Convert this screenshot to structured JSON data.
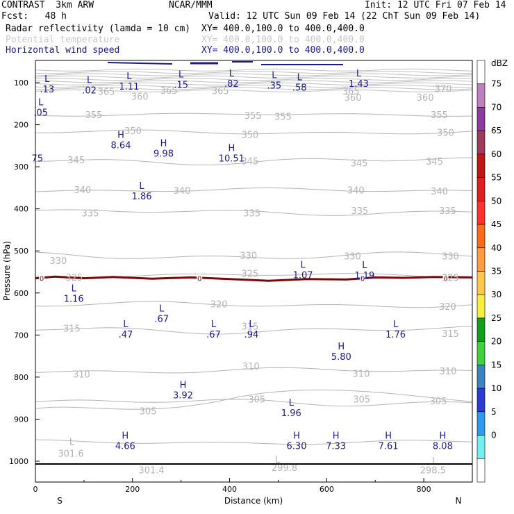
{
  "header": {
    "line1_left": "CONTRAST  3km ARW",
    "line1_mid": "NCAR/MMM",
    "line1_right": "Init: 12 UTC Fri 07 Feb 14",
    "line2_left": "Fcst:   48 h",
    "line2_right": "Valid: 12 UTC Sun 09 Feb 14 (22 ChT Sun 09 Feb 14)",
    "field1_name": "Radar reflectivity (lamda = 10 cm)",
    "field1_xy": "XY= 400.0,100.0 to 400.0,400.0",
    "field2_name": "Potential temperature",
    "field2_xy": "XY= 400.0,100.0 to 400.0,400.0",
    "field3_name": "Horizontal wind speed",
    "field3_xy": "XY= 400.0,100.0 to 400.0,400.0"
  },
  "colors": {
    "wind": "#1a1a8c",
    "theta": "#b4b4b4",
    "freezing": "#7a0a0a",
    "terrain": "#000000"
  },
  "chart_data": {
    "type": "cross-section",
    "xlabel": "Distance (km)",
    "ylabel": "Pressure (hPa)",
    "x_ticks": [
      "0",
      "200",
      "400",
      "600",
      "800"
    ],
    "y_ticks": [
      "100",
      "200",
      "300",
      "400",
      "500",
      "600",
      "700",
      "800",
      "900",
      "1000"
    ],
    "xlim": [
      0,
      900
    ],
    "ylim_hpa": [
      1050,
      55
    ],
    "endpoint_labels": {
      "left": "S",
      "right": "N"
    },
    "colorbar": {
      "unit": "dBZ",
      "levels": [
        "75",
        "70",
        "65",
        "60",
        "55",
        "50",
        "45",
        "40",
        "35",
        "30",
        "25",
        "20",
        "15",
        "10",
        "5",
        "0"
      ],
      "colors": [
        "#ffffff",
        "#c080c0",
        "#8c3c9c",
        "#9c3c5c",
        "#c01818",
        "#e02020",
        "#ff3030",
        "#ff6a1a",
        "#ff9c40",
        "#ffc84a",
        "#f8ee40",
        "#10a020",
        "#40d040",
        "#3c84c0",
        "#2c3ad8",
        "#2c9cf0",
        "#70f0f0",
        "#ffffff"
      ]
    },
    "theta_labels": [
      {
        "text": "365",
        "x": 146,
        "p": 121
      },
      {
        "text": "365",
        "x": 275,
        "p": 118
      },
      {
        "text": "365",
        "x": 381,
        "p": 119
      },
      {
        "text": "365",
        "x": 650,
        "p": 120
      },
      {
        "text": "370",
        "x": 840,
        "p": 113
      },
      {
        "text": "360",
        "x": 215,
        "p": 132
      },
      {
        "text": "360",
        "x": 654,
        "p": 135
      },
      {
        "text": "360",
        "x": 803,
        "p": 135
      },
      {
        "text": "355",
        "x": 120,
        "p": 176
      },
      {
        "text": "355",
        "x": 448,
        "p": 178
      },
      {
        "text": "355",
        "x": 510,
        "p": 180
      },
      {
        "text": "355",
        "x": 832,
        "p": 176
      },
      {
        "text": "350",
        "x": 201,
        "p": 214
      },
      {
        "text": "350",
        "x": 442,
        "p": 223
      },
      {
        "text": "350",
        "x": 845,
        "p": 218
      },
      {
        "text": "345",
        "x": 84,
        "p": 283
      },
      {
        "text": "345",
        "x": 442,
        "p": 286
      },
      {
        "text": "345",
        "x": 667,
        "p": 291
      },
      {
        "text": "345",
        "x": 822,
        "p": 287
      },
      {
        "text": "340",
        "x": 97,
        "p": 354
      },
      {
        "text": "340",
        "x": 302,
        "p": 356
      },
      {
        "text": "340",
        "x": 660,
        "p": 355
      },
      {
        "text": "340",
        "x": 832,
        "p": 358
      },
      {
        "text": "335",
        "x": 113,
        "p": 410
      },
      {
        "text": "335",
        "x": 446,
        "p": 410
      },
      {
        "text": "335",
        "x": 668,
        "p": 404
      },
      {
        "text": "335",
        "x": 849,
        "p": 404
      },
      {
        "text": "330",
        "x": 47,
        "p": 523
      },
      {
        "text": "330",
        "x": 439,
        "p": 510
      },
      {
        "text": "330",
        "x": 653,
        "p": 512
      },
      {
        "text": "330",
        "x": 855,
        "p": 512
      },
      {
        "text": "325",
        "x": 80,
        "p": 562
      },
      {
        "text": "325",
        "x": 442,
        "p": 553
      },
      {
        "text": "325",
        "x": 855,
        "p": 563
      },
      {
        "text": "320",
        "x": 378,
        "p": 626
      },
      {
        "text": "320",
        "x": 849,
        "p": 632
      },
      {
        "text": "315",
        "x": 75,
        "p": 684
      },
      {
        "text": "315",
        "x": 442,
        "p": 679
      },
      {
        "text": "315",
        "x": 855,
        "p": 696
      },
      {
        "text": "310",
        "x": 95,
        "p": 793
      },
      {
        "text": "310",
        "x": 444,
        "p": 774
      },
      {
        "text": "310",
        "x": 671,
        "p": 791
      },
      {
        "text": "310",
        "x": 850,
        "p": 785
      },
      {
        "text": "305",
        "x": 232,
        "p": 880
      },
      {
        "text": "305",
        "x": 456,
        "p": 852
      },
      {
        "text": "305",
        "x": 672,
        "p": 852
      },
      {
        "text": "305",
        "x": 830,
        "p": 856
      },
      {
        "text": "L",
        "x": 75,
        "p": 953
      },
      {
        "text": "301.6",
        "x": 73,
        "p": 981
      },
      {
        "text": "301.4",
        "x": 239,
        "p": 1021
      },
      {
        "text": "L",
        "x": 499,
        "p": 995
      },
      {
        "text": "299.8",
        "x": 513,
        "p": 1015
      },
      {
        "text": "L",
        "x": 822,
        "p": 998
      },
      {
        "text": "298.5",
        "x": 819,
        "p": 1021
      }
    ],
    "wind_labels": [
      {
        "type": "L",
        "value": ".13",
        "x": 24,
        "p": 98
      },
      {
        "type": "L",
        "value": ".02",
        "x": 111,
        "p": 101
      },
      {
        "type": "L",
        "value": "1.11",
        "x": 193,
        "p": 92
      },
      {
        "type": "L",
        "value": ".15",
        "x": 300,
        "p": 88
      },
      {
        "type": "L",
        "value": ".82",
        "x": 404,
        "p": 85
      },
      {
        "type": "L",
        "value": ".35",
        "x": 492,
        "p": 89
      },
      {
        "type": "L",
        "value": ".58",
        "x": 544,
        "p": 94
      },
      {
        "type": "L",
        "value": "1.43",
        "x": 666,
        "p": 85
      },
      {
        "type": "L",
        "value": ".05",
        "x": 11,
        "p": 154
      },
      {
        "type": "H",
        "value": "8.64",
        "x": 176,
        "p": 231
      },
      {
        "type": "H",
        "value": "9.98",
        "x": 264,
        "p": 251
      },
      {
        "type": "H",
        "value": "10.51",
        "x": 404,
        "p": 263
      },
      {
        "type": "",
        "value": "75",
        "x": 4,
        "p": 279
      },
      {
        "type": "L",
        "value": "1.86",
        "x": 219,
        "p": 353
      },
      {
        "type": "L",
        "value": "1.07",
        "x": 551,
        "p": 540
      },
      {
        "type": "L",
        "value": "1.19",
        "x": 678,
        "p": 541
      },
      {
        "type": "L",
        "value": "1.16",
        "x": 79,
        "p": 596
      },
      {
        "type": "L",
        "value": ".67",
        "x": 260,
        "p": 644
      },
      {
        "type": "L",
        "value": ".47",
        "x": 186,
        "p": 681
      },
      {
        "type": "L",
        "value": ".67",
        "x": 367,
        "p": 681
      },
      {
        "type": "L",
        "value": ".94",
        "x": 445,
        "p": 681
      },
      {
        "type": "L",
        "value": "1.76",
        "x": 742,
        "p": 681
      },
      {
        "type": "H",
        "value": "5.80",
        "x": 630,
        "p": 734
      },
      {
        "type": "H",
        "value": "3.92",
        "x": 304,
        "p": 826
      },
      {
        "type": "L",
        "value": "1.96",
        "x": 527,
        "p": 868
      },
      {
        "type": "H",
        "value": "4.66",
        "x": 185,
        "p": 946
      },
      {
        "type": "H",
        "value": "6.30",
        "x": 538,
        "p": 946
      },
      {
        "type": "H",
        "value": "7.33",
        "x": 619,
        "p": 946
      },
      {
        "type": "H",
        "value": "7.61",
        "x": 727,
        "p": 946
      },
      {
        "type": "H",
        "value": "8.08",
        "x": 839,
        "p": 946
      }
    ],
    "freezing_level": {
      "label": "0",
      "points": [
        [
          0,
          565
        ],
        [
          40,
          561
        ],
        [
          100,
          565
        ],
        [
          160,
          562
        ],
        [
          240,
          566
        ],
        [
          320,
          563
        ],
        [
          400,
          567
        ],
        [
          480,
          571
        ],
        [
          560,
          567
        ],
        [
          640,
          568
        ],
        [
          700,
          563
        ],
        [
          760,
          564
        ],
        [
          820,
          562
        ],
        [
          900,
          563
        ]
      ],
      "label_x": [
        13,
        338,
        674,
        845
      ]
    }
  }
}
